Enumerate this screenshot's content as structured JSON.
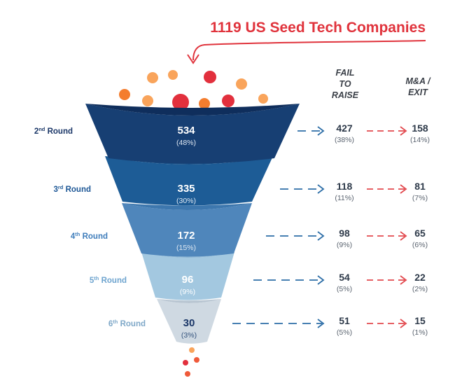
{
  "title": {
    "number": "1119",
    "text": " US Seed Tech Companies"
  },
  "columns": {
    "fail": [
      "FAIL",
      "TO",
      "RAISE"
    ],
    "exit": [
      "M&A /",
      "EXIT"
    ]
  },
  "rounds": [
    {
      "ord": "2",
      "sup": "nd",
      "label": " Round",
      "count": "534",
      "pct": "(48%)",
      "fail": "427",
      "fail_pct": "(38%)",
      "exit": "158",
      "exit_pct": "(14%)"
    },
    {
      "ord": "3",
      "sup": "rd",
      "label": " Round",
      "count": "335",
      "pct": "(30%)",
      "fail": "118",
      "fail_pct": "(11%)",
      "exit": "81",
      "exit_pct": "(7%)"
    },
    {
      "ord": "4",
      "sup": "th",
      "label": " Round",
      "count": "172",
      "pct": "(15%)",
      "fail": "98",
      "fail_pct": "(9%)",
      "exit": "65",
      "exit_pct": "(6%)"
    },
    {
      "ord": "5",
      "sup": "th",
      "label": " Round",
      "count": "96",
      "pct": "(9%)",
      "fail": "54",
      "fail_pct": "(5%)",
      "exit": "22",
      "exit_pct": "(2%)"
    },
    {
      "ord": "6",
      "sup": "th",
      "label": " Round",
      "count": "30",
      "pct": "(3%)",
      "fail": "51",
      "fail_pct": "(5%)",
      "exit": "15",
      "exit_pct": "(1%)"
    }
  ],
  "colors": {
    "title_red": "#e0333c",
    "fail_arrow": "#2f6fa8",
    "exit_arrow": "#e24a4f",
    "values_dark": "#2e3a4a",
    "header_dark": "#3a3f47",
    "bands": [
      "#173f73",
      "#1d5c96",
      "#4f86bb",
      "#a3c8e0",
      "#cfd9e2"
    ],
    "band_tops": [
      "#0f2e5c",
      "#184f86",
      "#3d77ae",
      "#8db6d4",
      "#b9c6d2"
    ],
    "round_labels": [
      "#1b3768",
      "#1d5796",
      "#3f7dbb",
      "#6ea4cf",
      "#7fa8c8"
    ],
    "dots": [
      "#f47d2e",
      "#f9a45b",
      "#e2303d",
      "#ef5a3a"
    ]
  }
}
